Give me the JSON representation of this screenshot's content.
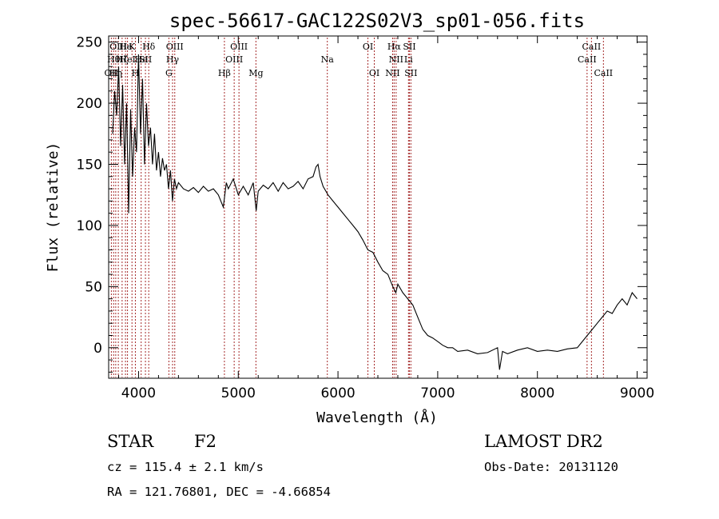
{
  "chart_data": {
    "type": "line",
    "title": "spec-56617-GAC122S02V3_sp01-056.fits",
    "xlabel": "Wavelength (Å)",
    "ylabel": "Flux (relative)",
    "xlim": [
      3700,
      9100
    ],
    "ylim": [
      -25,
      255
    ],
    "xticks": [
      4000,
      5000,
      6000,
      7000,
      8000,
      9000
    ],
    "yticks": [
      0,
      50,
      100,
      150,
      200,
      250
    ],
    "grid": false,
    "line_color": "#000000",
    "marker_color": "#a52a2a",
    "series": [
      {
        "x": [
          3740,
          3760,
          3780,
          3800,
          3820,
          3840,
          3860,
          3880,
          3900,
          3920,
          3940,
          3960,
          3980,
          4000,
          4020,
          4040,
          4060,
          4080,
          4100,
          4120,
          4140,
          4160,
          4180,
          4200,
          4220,
          4240,
          4260,
          4280,
          4300,
          4320,
          4340,
          4360,
          4380,
          4400,
          4450,
          4500,
          4550,
          4600,
          4650,
          4700,
          4750,
          4800,
          4850,
          4880,
          4900,
          4950,
          5000,
          5050,
          5100,
          5150,
          5180,
          5200,
          5250,
          5300,
          5350,
          5400,
          5450,
          5500,
          5550,
          5600,
          5650,
          5700,
          5750,
          5780,
          5800,
          5820,
          5850,
          5900,
          5950,
          6000,
          6050,
          6100,
          6150,
          6200,
          6250,
          6300,
          6350,
          6400,
          6450,
          6500,
          6550,
          6580,
          6600,
          6650,
          6700,
          6750,
          6800,
          6850,
          6900,
          6950,
          7000,
          7050,
          7100,
          7150,
          7200,
          7300,
          7400,
          7500,
          7600,
          7620,
          7650,
          7700,
          7800,
          7900,
          8000,
          8100,
          8200,
          8300,
          8400,
          8450,
          8500,
          8550,
          8600,
          8650,
          8700,
          8750,
          8800,
          8850,
          8900,
          8950,
          9000
        ],
        "y": [
          175,
          210,
          190,
          230,
          165,
          215,
          150,
          200,
          110,
          195,
          140,
          180,
          160,
          240,
          175,
          220,
          150,
          200,
          165,
          180,
          150,
          175,
          145,
          160,
          140,
          155,
          145,
          150,
          130,
          145,
          120,
          138,
          130,
          135,
          130,
          128,
          131,
          127,
          132,
          128,
          130,
          125,
          115,
          135,
          130,
          138,
          125,
          132,
          125,
          135,
          112,
          128,
          133,
          130,
          135,
          128,
          135,
          130,
          132,
          136,
          130,
          138,
          140,
          148,
          150,
          140,
          132,
          125,
          120,
          115,
          110,
          105,
          100,
          95,
          88,
          80,
          78,
          70,
          63,
          60,
          50,
          45,
          52,
          45,
          40,
          35,
          25,
          15,
          10,
          8,
          5,
          2,
          0,
          0,
          -3,
          -2,
          -5,
          -4,
          0,
          -18,
          -3,
          -5,
          -2,
          0,
          -3,
          -2,
          -3,
          -1,
          0,
          5,
          10,
          15,
          20,
          25,
          30,
          28,
          35,
          40,
          35,
          45,
          40
        ]
      }
    ],
    "line_markers": [
      {
        "x": 3727,
        "label": "OII",
        "row": 1
      },
      {
        "x": 3750,
        "label": "Hθ",
        "row": 2
      },
      {
        "x": 3771,
        "label": "Hη",
        "row": 1
      },
      {
        "x": 3797,
        "label": "OIII",
        "row": 3
      },
      {
        "x": 3835,
        "label": "Hζ",
        "row": 2
      },
      {
        "x": 3869,
        "label": "He",
        "row": 3
      },
      {
        "x": 3889,
        "label": "HeI",
        "row": 2
      },
      {
        "x": 3934,
        "label": "K",
        "row": 3
      },
      {
        "x": 3968,
        "label": "H",
        "row": 1
      },
      {
        "x": 4026,
        "label": "He",
        "row": 2
      },
      {
        "x": 4069,
        "label": "SII",
        "row": 2
      },
      {
        "x": 4102,
        "label": "Hδ",
        "row": 3
      },
      {
        "x": 4304,
        "label": "G",
        "row": 1
      },
      {
        "x": 4341,
        "label": "Hγ",
        "row": 2
      },
      {
        "x": 4363,
        "label": "OIII",
        "row": 3
      },
      {
        "x": 4861,
        "label": "Hβ",
        "row": 1
      },
      {
        "x": 4959,
        "label": "OIII",
        "row": 2
      },
      {
        "x": 5007,
        "label": "OIII",
        "row": 3
      },
      {
        "x": 5177,
        "label": "Mg",
        "row": 1
      },
      {
        "x": 5893,
        "label": "Na",
        "row": 2
      },
      {
        "x": 6300,
        "label": "OI",
        "row": 3
      },
      {
        "x": 6364,
        "label": "OI",
        "row": 1
      },
      {
        "x": 6548,
        "label": "NII",
        "row": 1
      },
      {
        "x": 6563,
        "label": "Hα",
        "row": 3
      },
      {
        "x": 6583,
        "label": "NII",
        "row": 2
      },
      {
        "x": 6707,
        "label": "Li",
        "row": 2
      },
      {
        "x": 6716,
        "label": "SII",
        "row": 3
      },
      {
        "x": 6731,
        "label": "SII",
        "row": 1
      },
      {
        "x": 8498,
        "label": "CaII",
        "row": 2
      },
      {
        "x": 8542,
        "label": "CaII",
        "row": 3
      },
      {
        "x": 8662,
        "label": "CaII",
        "row": 1
      }
    ]
  },
  "info": {
    "class": "STAR",
    "subclass": "F2",
    "survey": "LAMOST DR2",
    "redshift": "cz = 115.4 ± 2.1 km/s",
    "obs_date": "Obs-Date: 20131120",
    "coords": "RA = 121.76801, DEC =  -4.66854"
  }
}
